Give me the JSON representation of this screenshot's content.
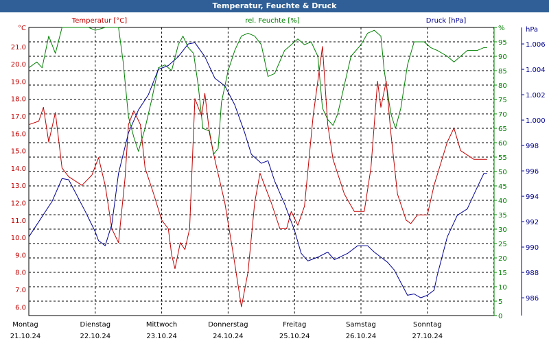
{
  "window": {
    "title": "Temperatur, Feuchte & Druck"
  },
  "colors": {
    "temperature": "#c00000",
    "humidity": "#008000",
    "pressure": "#000090",
    "titlebar": "#2f5f96"
  },
  "chart_data": {
    "type": "line",
    "title": "Temperatur, Feuchte & Druck",
    "axes": {
      "temperature": {
        "unit": "°C",
        "label": "Temperatur [°C]",
        "range": [
          5.5,
          22.1
        ],
        "ticks": [
          "6.0",
          "7.0",
          "8.0",
          "9.0",
          "10.0",
          "11.0",
          "12.0",
          "13.0",
          "14.0",
          "15.0",
          "16.0",
          "17.0",
          "18.0",
          "19.0",
          "20.0",
          "21.0"
        ]
      },
      "humidity": {
        "unit": "%",
        "label": "rel. Feuchte [%]",
        "range": [
          0,
          100
        ],
        "ticks": [
          "0",
          "5",
          "10",
          "15",
          "20",
          "25",
          "30",
          "35",
          "40",
          "45",
          "50",
          "55",
          "60",
          "65",
          "70",
          "75",
          "80",
          "85",
          "90",
          "95",
          "%"
        ]
      },
      "pressure": {
        "unit": "hPa",
        "label": "Druck [hPa]",
        "range": [
          984.6,
          1007.3
        ],
        "ticks": [
          "986",
          "988",
          "990",
          "992",
          "994",
          "996",
          "998",
          "1.000",
          "1.002",
          "1.004",
          "1.006",
          "hPa"
        ]
      }
    },
    "x_labels": [
      {
        "day": "Montag",
        "date": "21.10.24"
      },
      {
        "day": "Dienstag",
        "date": "22.10.24"
      },
      {
        "day": "Mittwoch",
        "date": "23.10.24"
      },
      {
        "day": "Donnerstag",
        "date": "24.10.24"
      },
      {
        "day": "Freitag",
        "date": "25.10.24"
      },
      {
        "day": "Samstag",
        "date": "26.10.24"
      },
      {
        "day": "Sonntag",
        "date": "27.10.24"
      }
    ],
    "x_range_days": [
      0,
      7.2
    ],
    "series": [
      {
        "name": "Temperatur",
        "axis": "temperature",
        "color": "#c00000",
        "points": [
          [
            0,
            16.5
          ],
          [
            0.15,
            16.7
          ],
          [
            0.22,
            17.5
          ],
          [
            0.3,
            15.5
          ],
          [
            0.4,
            17.2
          ],
          [
            0.5,
            14.0
          ],
          [
            0.6,
            13.5
          ],
          [
            0.8,
            13.0
          ],
          [
            0.95,
            13.6
          ],
          [
            1.05,
            14.6
          ],
          [
            1.15,
            13.0
          ],
          [
            1.25,
            10.5
          ],
          [
            1.35,
            9.7
          ],
          [
            1.45,
            13.5
          ],
          [
            1.5,
            16.5
          ],
          [
            1.58,
            17.3
          ],
          [
            1.68,
            16.5
          ],
          [
            1.75,
            14.0
          ],
          [
            1.88,
            12.5
          ],
          [
            2.0,
            11.0
          ],
          [
            2.1,
            10.5
          ],
          [
            2.15,
            9.0
          ],
          [
            2.2,
            8.2
          ],
          [
            2.28,
            9.7
          ],
          [
            2.35,
            9.3
          ],
          [
            2.42,
            10.5
          ],
          [
            2.5,
            18.0
          ],
          [
            2.6,
            17.0
          ],
          [
            2.65,
            18.3
          ],
          [
            2.72,
            16.0
          ],
          [
            2.8,
            14.5
          ],
          [
            2.95,
            12.0
          ],
          [
            3.08,
            9.0
          ],
          [
            3.2,
            6.0
          ],
          [
            3.3,
            8.0
          ],
          [
            3.4,
            12.0
          ],
          [
            3.48,
            13.7
          ],
          [
            3.55,
            13.0
          ],
          [
            3.65,
            12.0
          ],
          [
            3.78,
            10.5
          ],
          [
            3.88,
            10.5
          ],
          [
            3.95,
            11.5
          ],
          [
            4.05,
            10.7
          ],
          [
            4.15,
            11.8
          ],
          [
            4.28,
            17.0
          ],
          [
            4.35,
            19.0
          ],
          [
            4.42,
            21.0
          ],
          [
            4.5,
            16.5
          ],
          [
            4.58,
            14.5
          ],
          [
            4.75,
            12.5
          ],
          [
            4.9,
            11.5
          ],
          [
            5.05,
            11.5
          ],
          [
            5.15,
            14.0
          ],
          [
            5.25,
            19.0
          ],
          [
            5.3,
            17.5
          ],
          [
            5.38,
            19.0
          ],
          [
            5.45,
            16.0
          ],
          [
            5.55,
            12.5
          ],
          [
            5.68,
            11.0
          ],
          [
            5.75,
            10.8
          ],
          [
            5.85,
            11.3
          ],
          [
            6.0,
            11.3
          ],
          [
            6.1,
            13.0
          ],
          [
            6.3,
            15.5
          ],
          [
            6.4,
            16.3
          ],
          [
            6.5,
            15.0
          ],
          [
            6.7,
            14.5
          ],
          [
            6.85,
            14.5
          ],
          [
            6.9,
            14.5
          ]
        ]
      },
      {
        "name": "rel. Feuchte",
        "axis": "humidity",
        "color": "#008000",
        "points": [
          [
            0,
            86
          ],
          [
            0.12,
            88
          ],
          [
            0.2,
            86
          ],
          [
            0.3,
            97
          ],
          [
            0.4,
            91
          ],
          [
            0.5,
            100
          ],
          [
            0.7,
            100
          ],
          [
            0.9,
            100
          ],
          [
            1.0,
            99
          ],
          [
            1.15,
            100
          ],
          [
            1.35,
            100
          ],
          [
            1.42,
            88
          ],
          [
            1.5,
            69
          ],
          [
            1.58,
            62
          ],
          [
            1.65,
            57
          ],
          [
            1.75,
            65
          ],
          [
            1.85,
            75
          ],
          [
            1.95,
            86
          ],
          [
            2.05,
            87
          ],
          [
            2.15,
            85
          ],
          [
            2.25,
            94
          ],
          [
            2.32,
            97
          ],
          [
            2.4,
            93
          ],
          [
            2.48,
            91
          ],
          [
            2.55,
            80
          ],
          [
            2.62,
            65
          ],
          [
            2.72,
            64
          ],
          [
            2.78,
            56
          ],
          [
            2.85,
            58
          ],
          [
            2.9,
            74
          ],
          [
            3.0,
            85
          ],
          [
            3.1,
            92
          ],
          [
            3.2,
            97
          ],
          [
            3.3,
            98
          ],
          [
            3.4,
            97
          ],
          [
            3.5,
            94
          ],
          [
            3.6,
            83
          ],
          [
            3.7,
            84
          ],
          [
            3.85,
            92
          ],
          [
            3.95,
            94
          ],
          [
            4.05,
            96
          ],
          [
            4.15,
            94
          ],
          [
            4.25,
            95
          ],
          [
            4.35,
            90
          ],
          [
            4.42,
            72
          ],
          [
            4.5,
            68
          ],
          [
            4.58,
            66
          ],
          [
            4.65,
            70
          ],
          [
            4.75,
            80
          ],
          [
            4.85,
            90
          ],
          [
            5.0,
            94
          ],
          [
            5.1,
            98
          ],
          [
            5.2,
            99
          ],
          [
            5.3,
            97
          ],
          [
            5.35,
            85
          ],
          [
            5.45,
            70
          ],
          [
            5.52,
            65
          ],
          [
            5.6,
            72
          ],
          [
            5.7,
            87
          ],
          [
            5.8,
            95
          ],
          [
            5.95,
            95
          ],
          [
            6.05,
            93
          ],
          [
            6.15,
            92
          ],
          [
            6.3,
            90
          ],
          [
            6.4,
            88
          ],
          [
            6.5,
            90
          ],
          [
            6.6,
            92
          ],
          [
            6.75,
            92
          ],
          [
            6.85,
            93
          ],
          [
            6.9,
            93
          ]
        ]
      },
      {
        "name": "Druck",
        "axis": "pressure",
        "color": "#000090",
        "points": [
          [
            0,
            990.8
          ],
          [
            0.2,
            992.4
          ],
          [
            0.35,
            993.6
          ],
          [
            0.5,
            995.4
          ],
          [
            0.6,
            995.3
          ],
          [
            0.7,
            994.3
          ],
          [
            0.85,
            992.8
          ],
          [
            1.0,
            991.2
          ],
          [
            1.05,
            990.5
          ],
          [
            1.15,
            990.1
          ],
          [
            1.25,
            991.8
          ],
          [
            1.35,
            995.8
          ],
          [
            1.5,
            999.0
          ],
          [
            1.65,
            1000.8
          ],
          [
            1.8,
            1002.0
          ],
          [
            1.95,
            1004.0
          ],
          [
            2.1,
            1004.3
          ],
          [
            2.25,
            1005.0
          ],
          [
            2.4,
            1006.0
          ],
          [
            2.5,
            1006.1
          ],
          [
            2.65,
            1005.0
          ],
          [
            2.8,
            1003.3
          ],
          [
            2.95,
            1002.7
          ],
          [
            3.1,
            1001.2
          ],
          [
            3.25,
            999.0
          ],
          [
            3.35,
            997.3
          ],
          [
            3.5,
            996.6
          ],
          [
            3.6,
            996.8
          ],
          [
            3.7,
            995.2
          ],
          [
            3.85,
            993.4
          ],
          [
            4.0,
            991.3
          ],
          [
            4.1,
            989.5
          ],
          [
            4.2,
            988.9
          ],
          [
            4.35,
            989.2
          ],
          [
            4.5,
            989.6
          ],
          [
            4.6,
            989.0
          ],
          [
            4.8,
            989.5
          ],
          [
            4.95,
            990.1
          ],
          [
            5.1,
            990.1
          ],
          [
            5.2,
            989.6
          ],
          [
            5.3,
            989.2
          ],
          [
            5.4,
            988.8
          ],
          [
            5.5,
            988.2
          ],
          [
            5.6,
            987.2
          ],
          [
            5.7,
            986.2
          ],
          [
            5.8,
            986.3
          ],
          [
            5.9,
            986.0
          ],
          [
            6.0,
            986.2
          ],
          [
            6.1,
            986.6
          ],
          [
            6.15,
            987.8
          ],
          [
            6.3,
            990.8
          ],
          [
            6.45,
            992.5
          ],
          [
            6.6,
            993.0
          ],
          [
            6.75,
            994.7
          ],
          [
            6.85,
            995.8
          ],
          [
            6.9,
            995.8
          ]
        ]
      }
    ]
  }
}
